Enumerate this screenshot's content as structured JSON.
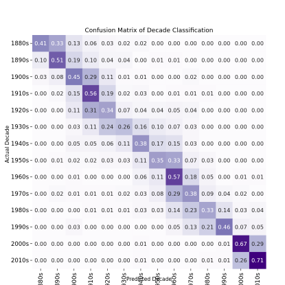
{
  "chart_data": {
    "type": "heatmap",
    "title": "Confusion Matrix of Decade Classification",
    "xlabel": "Predicted Decade",
    "ylabel": "Actual Decade",
    "x_categories": [
      "1880s",
      "1890s",
      "1900s",
      "1910s",
      "1920s",
      "1930s",
      "1940s",
      "1950s",
      "1960s",
      "1970s",
      "1980s",
      "1990s",
      "2000s",
      "2010s"
    ],
    "y_categories": [
      "1880s",
      "1890s",
      "1900s",
      "1910s",
      "1920s",
      "1930s",
      "1940s",
      "1950s",
      "1960s",
      "1970s",
      "1980s",
      "1990s",
      "2000s",
      "2010s"
    ],
    "values": [
      [
        0.41,
        0.33,
        0.13,
        0.06,
        0.03,
        0.02,
        0.02,
        0.0,
        0.0,
        0.0,
        0.0,
        0.0,
        0.0,
        0.0
      ],
      [
        0.1,
        0.51,
        0.19,
        0.1,
        0.04,
        0.04,
        0.0,
        0.01,
        0.01,
        0.0,
        0.0,
        0.0,
        0.0,
        0.0
      ],
      [
        0.03,
        0.08,
        0.45,
        0.29,
        0.11,
        0.01,
        0.01,
        0.0,
        0.0,
        0.02,
        0.0,
        0.0,
        0.0,
        0.0
      ],
      [
        0.0,
        0.02,
        0.15,
        0.56,
        0.19,
        0.02,
        0.03,
        0.0,
        0.01,
        0.01,
        0.01,
        0.0,
        0.0,
        0.0
      ],
      [
        0.0,
        0.0,
        0.11,
        0.31,
        0.34,
        0.07,
        0.04,
        0.04,
        0.05,
        0.04,
        0.0,
        0.0,
        0.0,
        0.0
      ],
      [
        0.0,
        0.0,
        0.03,
        0.11,
        0.24,
        0.26,
        0.16,
        0.1,
        0.07,
        0.03,
        0.0,
        0.0,
        0.0,
        0.0
      ],
      [
        0.0,
        0.0,
        0.05,
        0.05,
        0.06,
        0.11,
        0.38,
        0.17,
        0.15,
        0.03,
        0.0,
        0.0,
        0.0,
        0.0
      ],
      [
        0.0,
        0.01,
        0.02,
        0.02,
        0.03,
        0.03,
        0.11,
        0.35,
        0.33,
        0.07,
        0.03,
        0.0,
        0.0,
        0.0
      ],
      [
        0.0,
        0.0,
        0.01,
        0.0,
        0.0,
        0.0,
        0.06,
        0.11,
        0.57,
        0.18,
        0.05,
        0.0,
        0.01,
        0.01
      ],
      [
        0.0,
        0.02,
        0.01,
        0.01,
        0.01,
        0.02,
        0.03,
        0.08,
        0.29,
        0.38,
        0.09,
        0.04,
        0.02,
        0.0
      ],
      [
        0.0,
        0.0,
        0.0,
        0.01,
        0.01,
        0.01,
        0.03,
        0.03,
        0.14,
        0.23,
        0.33,
        0.14,
        0.03,
        0.04
      ],
      [
        0.0,
        0.0,
        0.03,
        0.0,
        0.0,
        0.0,
        0.0,
        0.0,
        0.05,
        0.13,
        0.21,
        0.46,
        0.07,
        0.05
      ],
      [
        0.0,
        0.0,
        0.0,
        0.0,
        0.0,
        0.0,
        0.01,
        0.0,
        0.0,
        0.0,
        0.0,
        0.01,
        0.67,
        0.29
      ],
      [
        0.0,
        0.0,
        0.0,
        0.0,
        0.0,
        0.0,
        0.01,
        0.0,
        0.0,
        0.0,
        0.01,
        0.01,
        0.26,
        0.71
      ]
    ],
    "colormap": "Purples",
    "vmin": 0,
    "vmax": 0.71,
    "grid": false,
    "legend": "none"
  }
}
